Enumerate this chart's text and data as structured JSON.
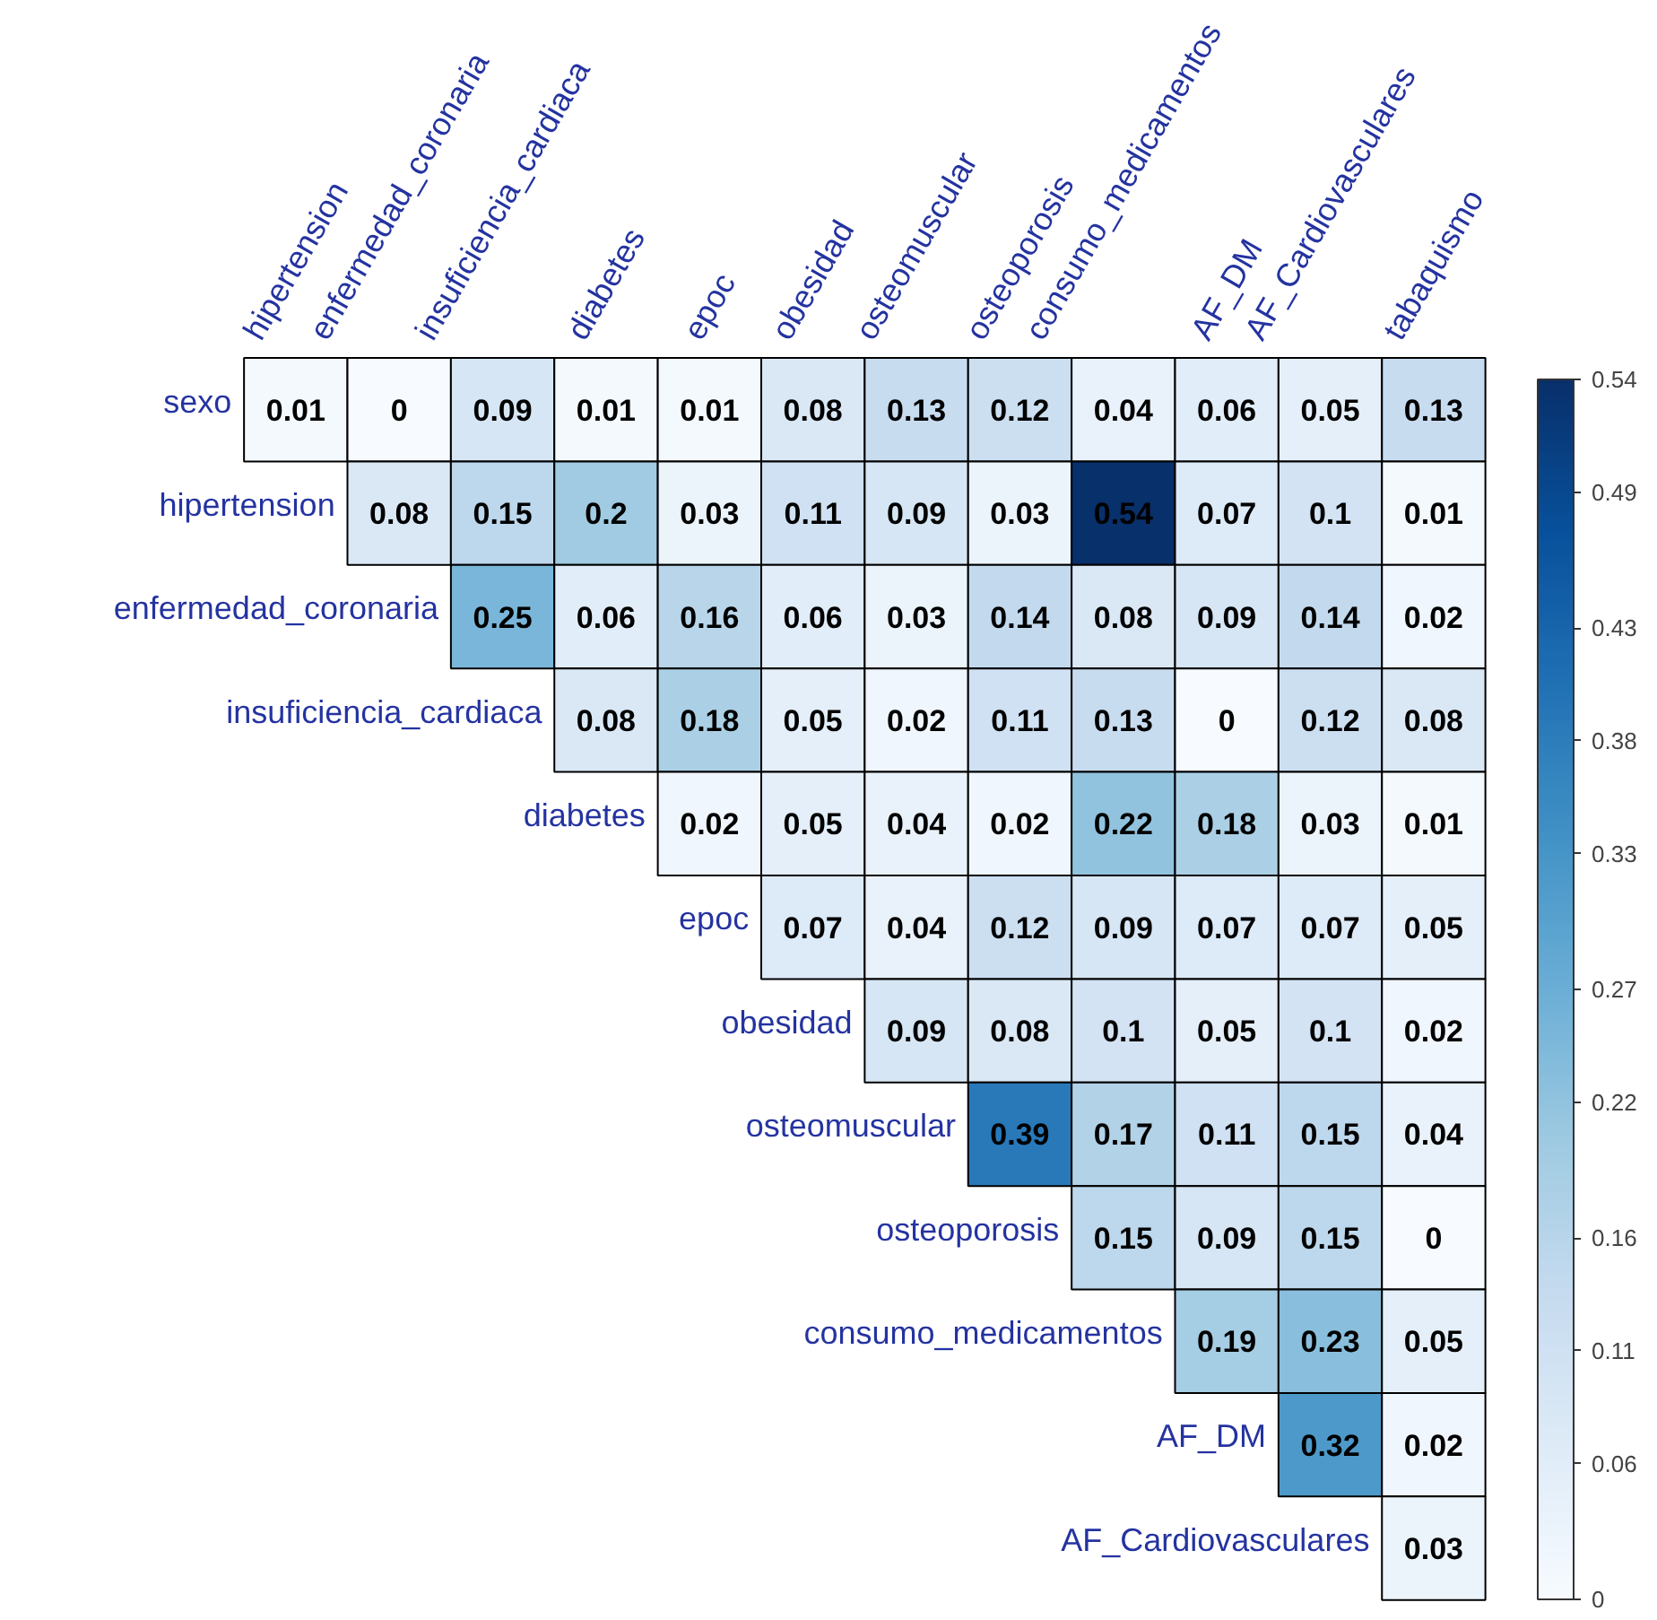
{
  "chart_data": {
    "type": "heatmap",
    "categories": [
      "hipertension",
      "enfermedad_coronaria",
      "insuficiencia_cardiaca",
      "diabetes",
      "epoc",
      "obesidad",
      "osteomuscular",
      "osteoporosis",
      "consumo_medicamentos",
      "AF_DM",
      "AF_Cardiovasculares",
      "tabaquismo"
    ],
    "y_categories": [
      "sexo",
      "hipertension",
      "enfermedad_coronaria",
      "insuficiencia_cardiaca",
      "diabetes",
      "epoc",
      "obesidad",
      "osteomuscular",
      "osteoporosis",
      "consumo_medicamentos",
      "AF_DM",
      "AF_Cardiovasculares"
    ],
    "cells": [
      [
        0.01,
        0,
        0.09,
        0.01,
        0.01,
        0.08,
        0.13,
        0.12,
        0.04,
        0.06,
        0.05,
        0.13
      ],
      [
        null,
        0.08,
        0.15,
        0.2,
        0.03,
        0.11,
        0.09,
        0.03,
        0.54,
        0.07,
        0.1,
        0.01
      ],
      [
        null,
        null,
        0.25,
        0.06,
        0.16,
        0.06,
        0.03,
        0.14,
        0.08,
        0.09,
        0.14,
        0.02
      ],
      [
        null,
        null,
        null,
        0.08,
        0.18,
        0.05,
        0.02,
        0.11,
        0.13,
        0,
        0.12,
        0.08
      ],
      [
        null,
        null,
        null,
        null,
        0.02,
        0.05,
        0.04,
        0.02,
        0.22,
        0.18,
        0.03,
        0.01
      ],
      [
        null,
        null,
        null,
        null,
        null,
        0.07,
        0.04,
        0.12,
        0.09,
        0.07,
        0.07,
        0.05
      ],
      [
        null,
        null,
        null,
        null,
        null,
        null,
        0.09,
        0.08,
        0.1,
        0.05,
        0.1,
        0.02
      ],
      [
        null,
        null,
        null,
        null,
        null,
        null,
        null,
        0.39,
        0.17,
        0.11,
        0.15,
        0.04
      ],
      [
        null,
        null,
        null,
        null,
        null,
        null,
        null,
        null,
        0.15,
        0.09,
        0.15,
        0
      ],
      [
        null,
        null,
        null,
        null,
        null,
        null,
        null,
        null,
        null,
        0.19,
        0.23,
        0.05
      ],
      [
        null,
        null,
        null,
        null,
        null,
        null,
        null,
        null,
        null,
        null,
        0.32,
        0.02
      ],
      [
        null,
        null,
        null,
        null,
        null,
        null,
        null,
        null,
        null,
        null,
        null,
        0.03
      ]
    ],
    "clim": [
      0,
      0.54
    ],
    "cticks": [
      0,
      0.06,
      0.11,
      0.16,
      0.22,
      0.27,
      0.33,
      0.38,
      0.43,
      0.49,
      0.54
    ],
    "data_labels": true
  }
}
